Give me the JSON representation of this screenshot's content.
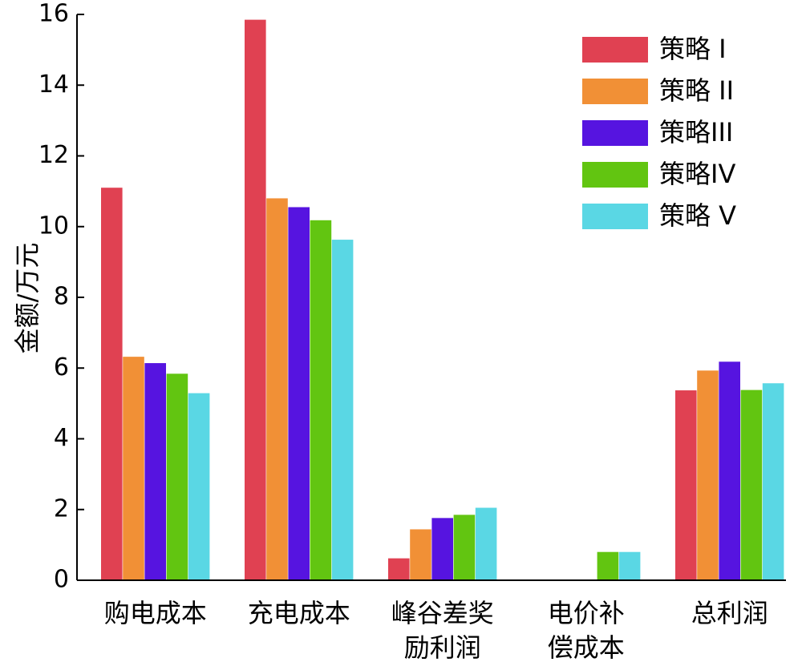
{
  "chart_data": {
    "type": "bar",
    "title": "",
    "xlabel": "",
    "ylabel": "金额/万元",
    "ylim": [
      0,
      16
    ],
    "yticks": [
      0,
      2,
      4,
      6,
      8,
      10,
      12,
      14,
      16
    ],
    "grid": false,
    "legend_position": "top-right",
    "categories": [
      [
        "购电成本"
      ],
      [
        "充电成本"
      ],
      [
        "峰谷差奖",
        "励利润"
      ],
      [
        "电价补",
        "偿成本"
      ],
      [
        "总利润"
      ]
    ],
    "series": [
      {
        "name": "策略 I",
        "color": "#e04152",
        "values": [
          11.1,
          15.85,
          0.62,
          0,
          5.37
        ]
      },
      {
        "name": "策略 II",
        "color": "#f19036",
        "values": [
          6.32,
          10.8,
          1.44,
          0,
          5.93
        ]
      },
      {
        "name": "策略III",
        "color": "#5614e0",
        "values": [
          6.14,
          10.55,
          1.76,
          0,
          6.18
        ]
      },
      {
        "name": "策略IV",
        "color": "#62c511",
        "values": [
          5.84,
          10.18,
          1.85,
          0.8,
          5.38
        ]
      },
      {
        "name": "策略 V",
        "color": "#5ad7e4",
        "values": [
          5.29,
          9.63,
          2.05,
          0.8,
          5.57
        ]
      }
    ]
  }
}
